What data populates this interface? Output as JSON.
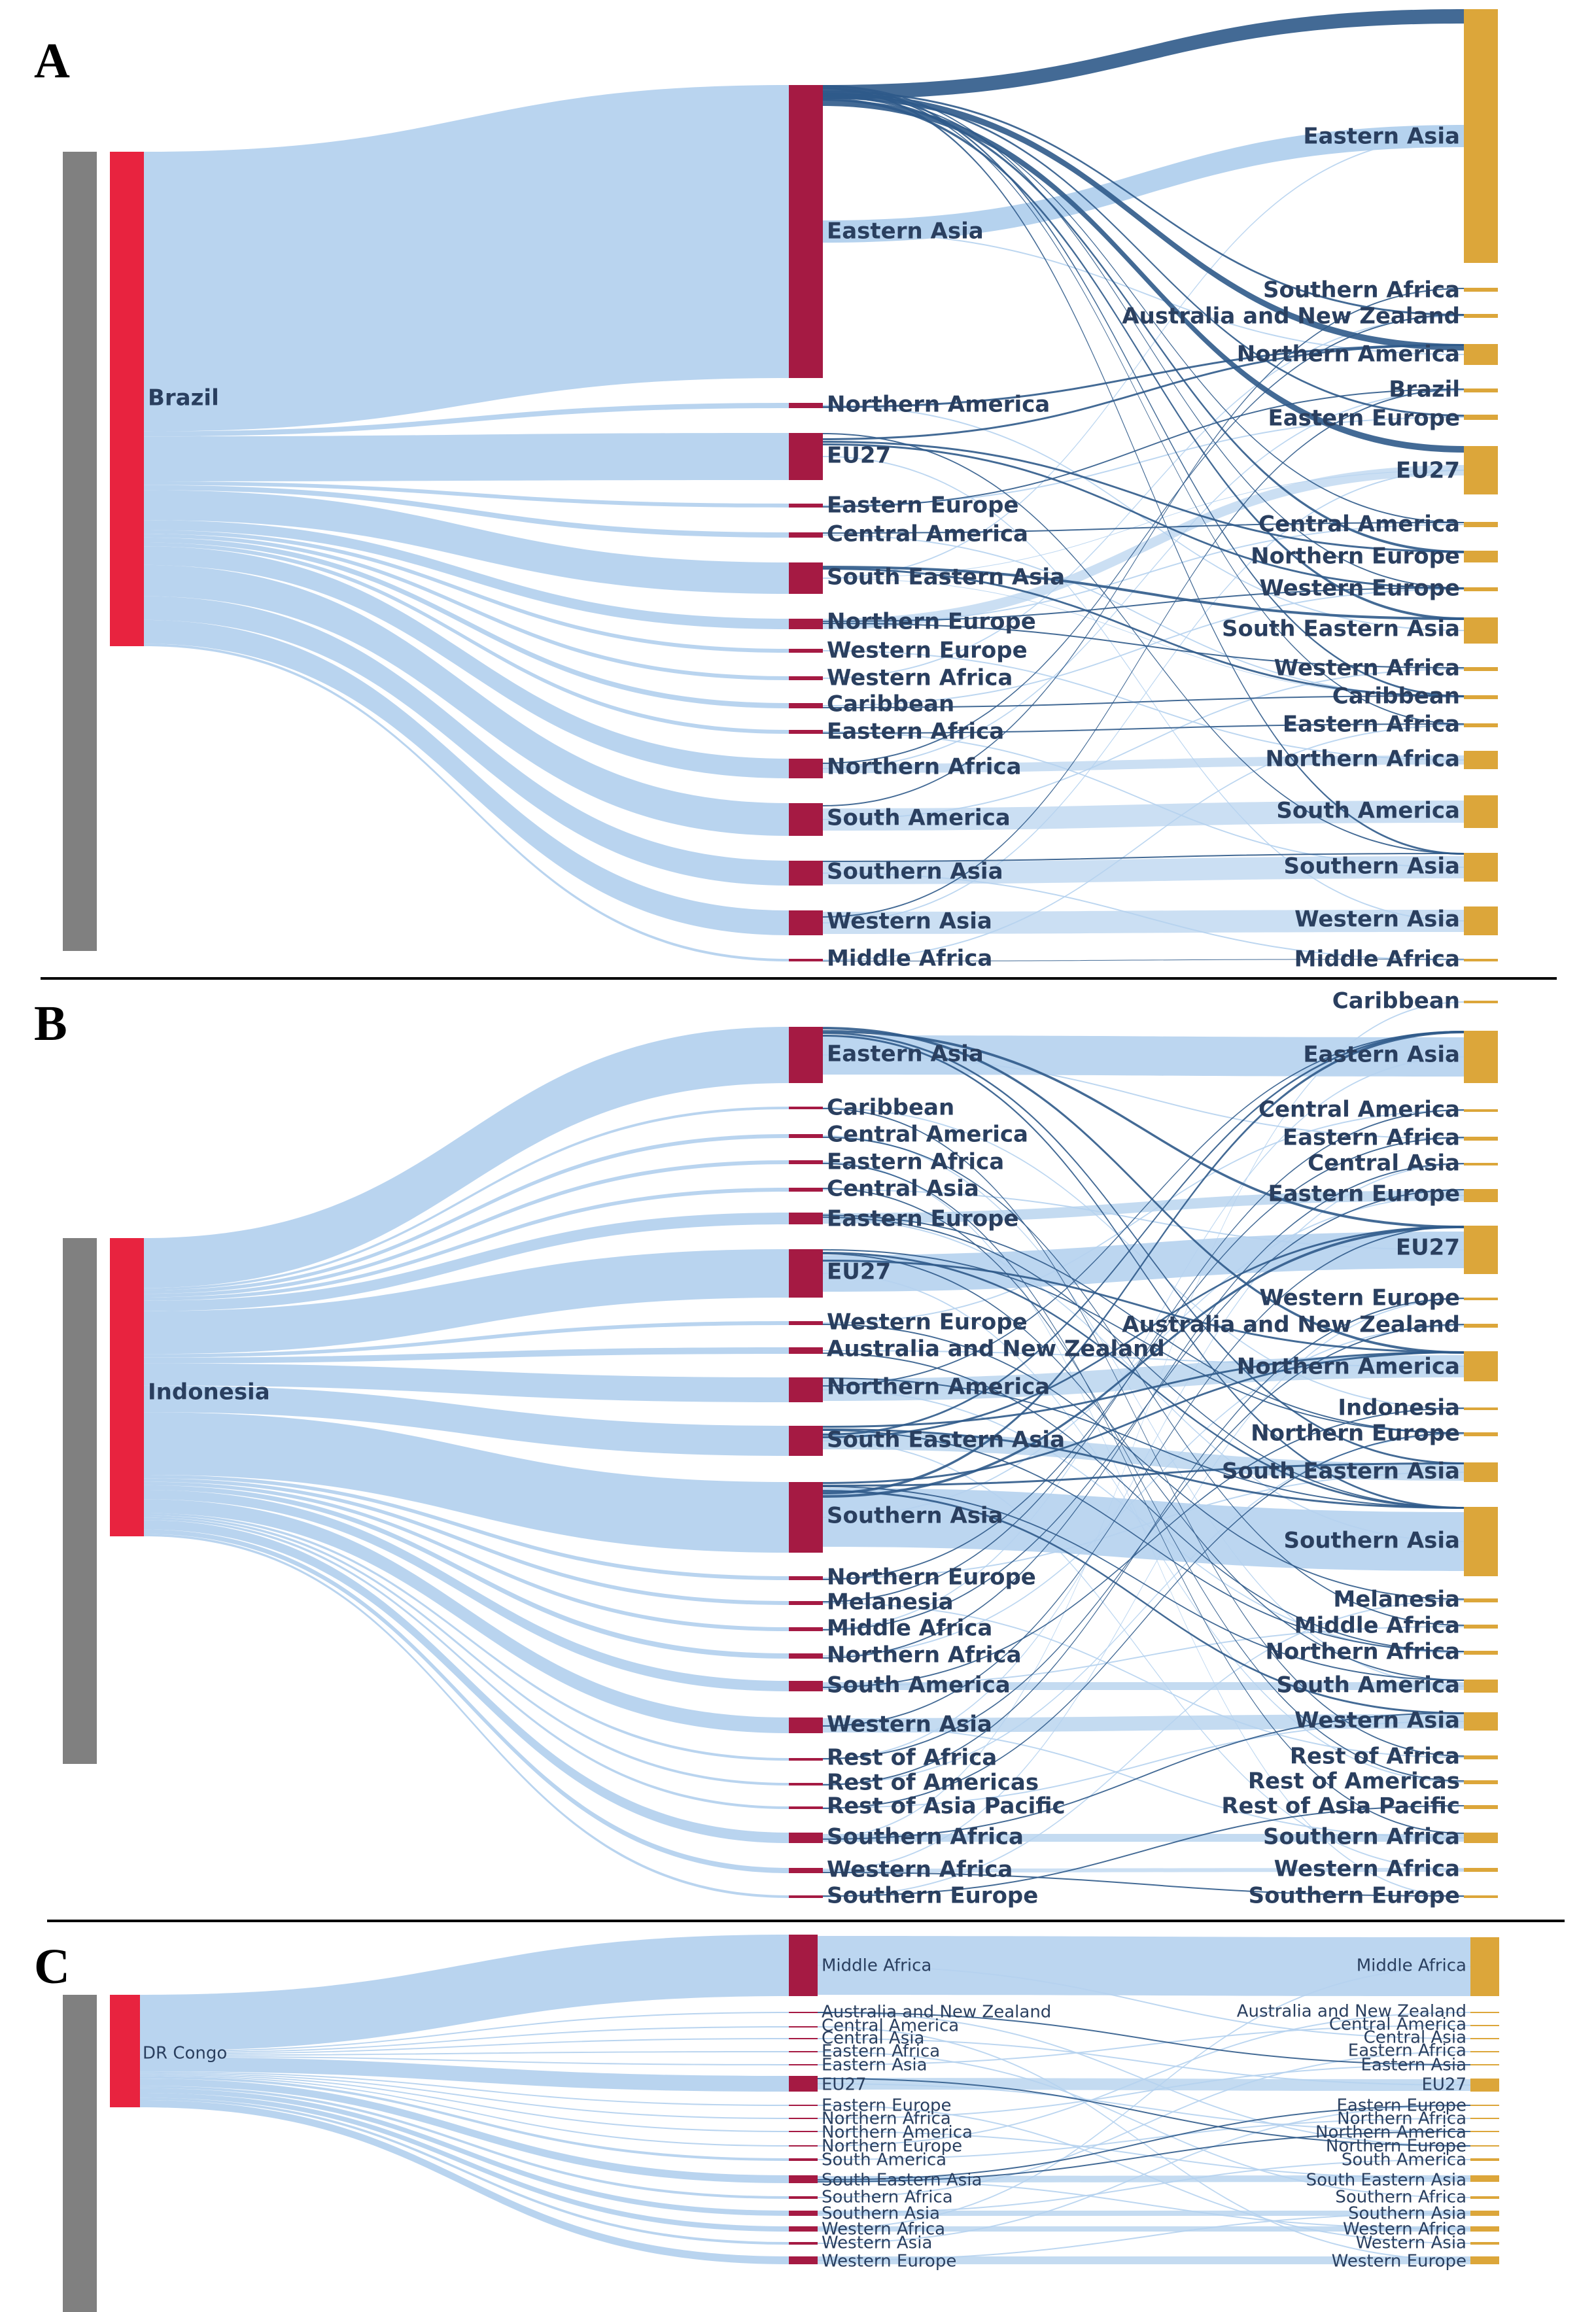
{
  "colors": {
    "source_bar": "#808080",
    "origin_node": "#e8233f",
    "middle_node": "#a51a43",
    "destination_node": "#dca63a",
    "flow_light": "#b5d2ee",
    "flow_dark": "#2f5a8a",
    "label_text": "#2a3f5f",
    "divider": "#000000"
  },
  "panels": [
    {
      "letter": "A",
      "origin": "Brazil",
      "middle": [
        "Eastern Asia",
        "Northern America",
        "EU27",
        "Eastern Europe",
        "Central America",
        "South Eastern Asia",
        "Northern Europe",
        "Western Europe",
        "Western Africa",
        "Caribbean",
        "Eastern Africa",
        "Northern Africa",
        "South America",
        "Southern Asia",
        "Western Asia",
        "Middle Africa"
      ],
      "destination": [
        "Eastern Asia",
        "Southern Africa",
        "Australia and New Zealand",
        "Northern America",
        "Brazil",
        "Eastern Europe",
        "EU27",
        "Central America",
        "Northern Europe",
        "Western Europe",
        "South Eastern Asia",
        "Western Africa",
        "Caribbean",
        "Eastern Africa",
        "Northern Africa",
        "South America",
        "Southern Asia",
        "Western Asia",
        "Middle Africa"
      ]
    },
    {
      "letter": "B",
      "origin": "Indonesia",
      "middle": [
        "Eastern Asia",
        "Caribbean",
        "Central America",
        "Eastern Africa",
        "Central Asia",
        "Eastern Europe",
        "EU27",
        "Western Europe",
        "Australia and New Zealand",
        "Northern America",
        "South Eastern Asia",
        "Southern Asia",
        "Northern Europe",
        "Melanesia",
        "Middle Africa",
        "Northern Africa",
        "South America",
        "Western Asia",
        "Rest of Africa",
        "Rest of Americas",
        "Rest of Asia Pacific",
        "Southern Africa",
        "Western Africa",
        "Southern Europe"
      ],
      "destination": [
        "Caribbean",
        "Eastern Asia",
        "Central America",
        "Eastern Africa",
        "Central Asia",
        "Eastern Europe",
        "EU27",
        "Western Europe",
        "Australia and New Zealand",
        "Northern America",
        "Indonesia",
        "Northern Europe",
        "South Eastern Asia",
        "Southern Asia",
        "Melanesia",
        "Middle Africa",
        "Northern Africa",
        "South America",
        "Western Asia",
        "Rest of Africa",
        "Rest of Americas",
        "Rest of Asia Pacific",
        "Southern Africa",
        "Western Africa",
        "Southern Europe"
      ]
    },
    {
      "letter": "C",
      "origin": "DR Congo",
      "middle": [
        "Middle Africa",
        "Australia and New Zealand",
        "Central America",
        "Central Asia",
        "Eastern Africa",
        "Eastern Asia",
        "EU27",
        "Eastern Europe",
        "Northern Africa",
        "Northern America",
        "Northern Europe",
        "South America",
        "South Eastern Asia",
        "Southern Africa",
        "Southern Asia",
        "Western Africa",
        "Western Asia",
        "Western Europe"
      ],
      "destination": [
        "Middle Africa",
        "Australia and New Zealand",
        "Central America",
        "Central Asia",
        "Eastern Africa",
        "Eastern Asia",
        "EU27",
        "Eastern Europe",
        "Northern Africa",
        "Northern America",
        "Northern Europe",
        "South America",
        "South Eastern Asia",
        "Southern Africa",
        "Southern Asia",
        "Western Africa",
        "Western Asia",
        "Western Europe"
      ]
    }
  ]
}
